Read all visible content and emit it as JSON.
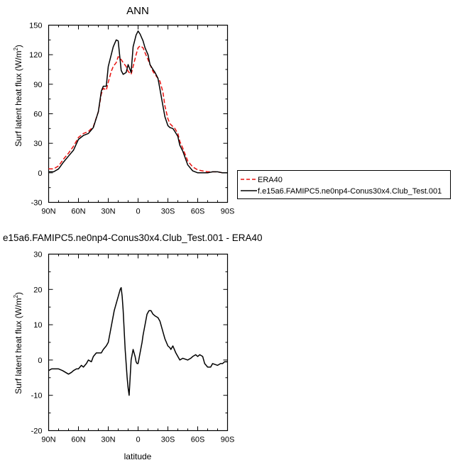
{
  "chart_data": [
    {
      "type": "line",
      "title": "ANN",
      "xlabel": "",
      "ylabel": "Surf latent heat flux (W/m²)",
      "ylabel_main": "Surf latent heat flux (W/m",
      "ylabel_sup": "2",
      "ylabel_end": ")",
      "xlim": [
        90,
        -90
      ],
      "ylim": [
        -30,
        150
      ],
      "yticks": [
        -30,
        0,
        30,
        60,
        90,
        120,
        150
      ],
      "xticks": [
        90,
        60,
        30,
        0,
        -30,
        -60,
        -90
      ],
      "xticklabels": [
        "90N",
        "60N",
        "30N",
        "0",
        "30S",
        "60S",
        "90S"
      ],
      "legend": {
        "placement": "outside-right"
      },
      "series": [
        {
          "name": "ERA40",
          "color": "#e8110f",
          "dash": true,
          "x": [
            90,
            85,
            80,
            75,
            70,
            65,
            60,
            55,
            50,
            45,
            40,
            37,
            35,
            32,
            30,
            27,
            25,
            22,
            20,
            17,
            15,
            12,
            10,
            7,
            5,
            2,
            0,
            -2,
            -5,
            -7,
            -10,
            -12,
            -15,
            -17,
            -20,
            -22,
            -25,
            -27,
            -30,
            -32,
            -35,
            -37,
            -40,
            -42,
            -45,
            -50,
            -55,
            -60,
            -65,
            -70,
            -75,
            -80,
            -85,
            -90
          ],
          "y": [
            4,
            4,
            7,
            14,
            20,
            27,
            36,
            40,
            42,
            47,
            62,
            80,
            86,
            84,
            92,
            103,
            108,
            112,
            118,
            115,
            112,
            108,
            103,
            100,
            108,
            120,
            127,
            129,
            127,
            122,
            115,
            110,
            103,
            100,
            96,
            93,
            82,
            68,
            55,
            50,
            47,
            45,
            40,
            32,
            25,
            12,
            6,
            3,
            2,
            1,
            1,
            1,
            0,
            0
          ]
        },
        {
          "name": "f.e15a6.FAMIPC5.ne0np4-Conus30x4.Club_Test.001",
          "color": "#000000",
          "dash": false,
          "x": [
            90,
            85,
            80,
            75,
            70,
            65,
            60,
            55,
            50,
            45,
            40,
            37,
            35,
            32,
            30,
            27,
            25,
            22,
            20,
            17,
            15,
            12,
            10,
            7,
            5,
            2,
            0,
            -2,
            -5,
            -7,
            -10,
            -12,
            -15,
            -17,
            -20,
            -22,
            -25,
            -27,
            -30,
            -32,
            -35,
            -37,
            -40,
            -42,
            -45,
            -50,
            -55,
            -60,
            -65,
            -70,
            -75,
            -80,
            -85,
            -90
          ],
          "y": [
            1,
            1,
            4,
            11,
            17,
            23,
            34,
            38,
            40,
            46,
            62,
            83,
            88,
            88,
            108,
            120,
            128,
            135,
            134,
            104,
            100,
            102,
            110,
            102,
            128,
            140,
            144,
            141,
            134,
            127,
            120,
            110,
            105,
            102,
            96,
            85,
            68,
            57,
            48,
            46,
            45,
            42,
            37,
            28,
            22,
            8,
            2,
            0,
            0,
            0,
            1,
            1,
            0,
            0
          ]
        }
      ]
    },
    {
      "type": "line",
      "title": "e15a6.FAMIPC5.ne0np4-Conus30x4.Club_Test.001 - ERA40",
      "xlabel": "latitude",
      "ylabel": "Surf latent heat flux (W/m²)",
      "ylabel_main": "Surf latent heat flux (W/m",
      "ylabel_sup": "2",
      "ylabel_end": ")",
      "xlim": [
        90,
        -90
      ],
      "ylim": [
        -20,
        30
      ],
      "yticks": [
        -20,
        -10,
        0,
        10,
        20,
        30
      ],
      "xticks": [
        90,
        60,
        30,
        0,
        -30,
        -60,
        -90
      ],
      "xticklabels": [
        "90N",
        "60N",
        "30N",
        "0",
        "30S",
        "60S",
        "90S"
      ],
      "series": [
        {
          "color": "#000000",
          "dash": false,
          "x": [
            90,
            87,
            84,
            80,
            76,
            73,
            70,
            67,
            65,
            62,
            60,
            57,
            55,
            52,
            50,
            47,
            45,
            42,
            40,
            37,
            35,
            32,
            30,
            28,
            26,
            24,
            22,
            20,
            18,
            17,
            16,
            15,
            13,
            11,
            10,
            9,
            8,
            7,
            5,
            4,
            3,
            2,
            1,
            0,
            -2,
            -4,
            -5,
            -7,
            -9,
            -11,
            -13,
            -15,
            -17,
            -20,
            -22,
            -25,
            -27,
            -30,
            -32,
            -33,
            -35,
            -38,
            -42,
            -45,
            -50,
            -53,
            -55,
            -58,
            -60,
            -62,
            -65,
            -67,
            -70,
            -73,
            -75,
            -80,
            -83,
            -85,
            -87,
            -90
          ],
          "y": [
            -3,
            -2.5,
            -2.5,
            -2.5,
            -3,
            -3.5,
            -4,
            -3.5,
            -3,
            -2.5,
            -2.5,
            -1.5,
            -2,
            -1,
            0,
            -0.5,
            1,
            2,
            2,
            2,
            3,
            4,
            5,
            8,
            11,
            14,
            16,
            18,
            20,
            20.5,
            18,
            14,
            3,
            -5,
            -8,
            -10,
            -5,
            0,
            3,
            2,
            1,
            -0.5,
            -1,
            -1,
            2,
            5,
            7,
            10,
            13,
            14,
            14,
            13,
            12.5,
            12,
            11,
            8,
            6,
            4,
            3.5,
            3,
            4,
            2,
            0,
            0.5,
            0,
            0.5,
            1,
            1.5,
            1,
            1.5,
            1,
            -1,
            -2,
            -2,
            -1,
            -1.5,
            -1,
            -1,
            -0.5,
            -0.5
          ]
        }
      ]
    }
  ]
}
